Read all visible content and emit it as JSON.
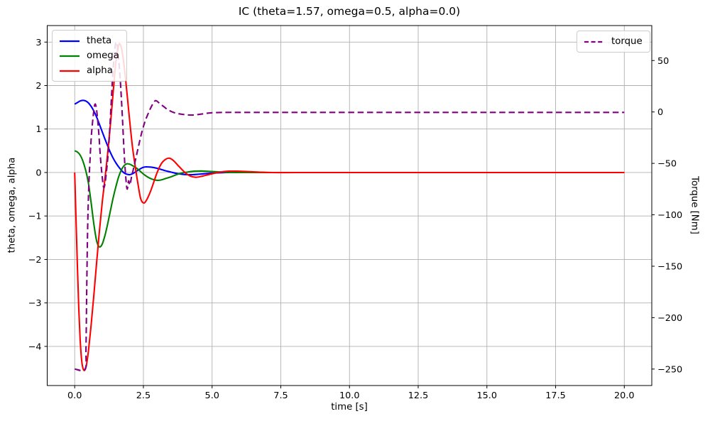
{
  "title": "IC (theta=1.57, omega=0.5, alpha=0.0)",
  "chart_data": {
    "type": "line",
    "title": "IC (theta=1.57, omega=0.5, alpha=0.0)",
    "xlabel": "time [s]",
    "ylabel_left": "theta, omega, alpha",
    "ylabel_right": "Torque [Nm]",
    "grid": true,
    "grid_color": "#b0b0b0",
    "xlim": [
      -1,
      21
    ],
    "ylim_left": [
      -4.9,
      3.38
    ],
    "ylim_right": [
      -266,
      84
    ],
    "x_tick_values": [
      0,
      2.5,
      5,
      7.5,
      10,
      12.5,
      15,
      17.5,
      20
    ],
    "x_tick_labels": [
      "0.0",
      "2.5",
      "5.0",
      "7.5",
      "10.0",
      "12.5",
      "15.0",
      "17.5",
      "20.0"
    ],
    "y_left_tick_values": [
      3,
      2,
      1,
      0,
      -1,
      -2,
      -3,
      -4
    ],
    "y_left_tick_labels": [
      "3",
      "2",
      "1",
      "0",
      "−1",
      "−2",
      "−3",
      "−4"
    ],
    "y_right_tick_values": [
      50,
      0,
      -50,
      -100,
      -150,
      -200,
      -250
    ],
    "y_right_tick_labels": [
      "50",
      "0",
      "−50",
      "−100",
      "−150",
      "−200",
      "−250"
    ],
    "legend_left_position": "upper left",
    "legend_right_position": "upper right",
    "series": [
      {
        "name": "theta",
        "axis": "left",
        "color": "#0000ff",
        "dash": "solid",
        "points": [
          [
            0,
            1.57
          ],
          [
            0.1,
            1.61
          ],
          [
            0.2,
            1.645
          ],
          [
            0.3,
            1.66
          ],
          [
            0.4,
            1.645
          ],
          [
            0.5,
            1.6
          ],
          [
            0.6,
            1.52
          ],
          [
            0.7,
            1.41
          ],
          [
            0.8,
            1.27
          ],
          [
            0.9,
            1.11
          ],
          [
            1,
            0.94
          ],
          [
            1.1,
            0.77
          ],
          [
            1.2,
            0.61
          ],
          [
            1.3,
            0.46
          ],
          [
            1.4,
            0.33
          ],
          [
            1.5,
            0.22
          ],
          [
            1.6,
            0.13
          ],
          [
            1.7,
            0.05
          ],
          [
            1.8,
            -0.01
          ],
          [
            1.9,
            -0.04
          ],
          [
            2,
            -0.05
          ],
          [
            2.1,
            -0.03
          ],
          [
            2.2,
            0.01
          ],
          [
            2.3,
            0.05
          ],
          [
            2.4,
            0.09
          ],
          [
            2.5,
            0.12
          ],
          [
            2.6,
            0.13
          ],
          [
            2.75,
            0.125
          ],
          [
            2.9,
            0.11
          ],
          [
            3.1,
            0.08
          ],
          [
            3.3,
            0.04
          ],
          [
            3.5,
            0.01
          ],
          [
            3.7,
            -0.02
          ],
          [
            3.9,
            -0.04
          ],
          [
            4.1,
            -0.05
          ],
          [
            4.3,
            -0.05
          ],
          [
            4.5,
            -0.04
          ],
          [
            4.8,
            -0.025
          ],
          [
            5.1,
            -0.01
          ],
          [
            5.5,
            0
          ],
          [
            6,
            0.01
          ],
          [
            6.5,
            0.005
          ],
          [
            7,
            0
          ],
          [
            8,
            0
          ],
          [
            9,
            0
          ],
          [
            10,
            0
          ],
          [
            11,
            0
          ],
          [
            12,
            0
          ],
          [
            13,
            0
          ],
          [
            14,
            0
          ],
          [
            15,
            0
          ],
          [
            16,
            0
          ],
          [
            17,
            0
          ],
          [
            18,
            0
          ],
          [
            19,
            0
          ],
          [
            20,
            0
          ]
        ]
      },
      {
        "name": "omega",
        "axis": "left",
        "color": "#008000",
        "dash": "solid",
        "points": [
          [
            0,
            0.5
          ],
          [
            0.1,
            0.47
          ],
          [
            0.2,
            0.4
          ],
          [
            0.3,
            0.26
          ],
          [
            0.4,
            0.05
          ],
          [
            0.5,
            -0.25
          ],
          [
            0.6,
            -0.7
          ],
          [
            0.7,
            -1.2
          ],
          [
            0.8,
            -1.58
          ],
          [
            0.9,
            -1.71
          ],
          [
            1,
            -1.65
          ],
          [
            1.1,
            -1.45
          ],
          [
            1.2,
            -1.18
          ],
          [
            1.3,
            -0.88
          ],
          [
            1.4,
            -0.58
          ],
          [
            1.5,
            -0.32
          ],
          [
            1.6,
            -0.1
          ],
          [
            1.7,
            0.06
          ],
          [
            1.8,
            0.16
          ],
          [
            1.9,
            0.2
          ],
          [
            2,
            0.19
          ],
          [
            2.1,
            0.16
          ],
          [
            2.25,
            0.1
          ],
          [
            2.4,
            0.02
          ],
          [
            2.55,
            -0.06
          ],
          [
            2.7,
            -0.12
          ],
          [
            2.85,
            -0.16
          ],
          [
            3,
            -0.18
          ],
          [
            3.15,
            -0.17
          ],
          [
            3.3,
            -0.14
          ],
          [
            3.5,
            -0.1
          ],
          [
            3.7,
            -0.05
          ],
          [
            3.9,
            -0.01
          ],
          [
            4.1,
            0.01
          ],
          [
            4.35,
            0.03
          ],
          [
            4.6,
            0.035
          ],
          [
            4.9,
            0.025
          ],
          [
            5.2,
            0.015
          ],
          [
            5.6,
            0.005
          ],
          [
            6,
            0
          ],
          [
            7,
            0
          ],
          [
            8,
            0
          ],
          [
            9,
            0
          ],
          [
            10,
            0
          ],
          [
            11,
            0
          ],
          [
            12,
            0
          ],
          [
            13,
            0
          ],
          [
            14,
            0
          ],
          [
            15,
            0
          ],
          [
            16,
            0
          ],
          [
            17,
            0
          ],
          [
            18,
            0
          ],
          [
            19,
            0
          ],
          [
            20,
            0
          ]
        ]
      },
      {
        "name": "alpha",
        "axis": "left",
        "color": "#ff0000",
        "dash": "solid",
        "points": [
          [
            0,
            0
          ],
          [
            0.05,
            -1.1
          ],
          [
            0.1,
            -2.2
          ],
          [
            0.15,
            -3.15
          ],
          [
            0.2,
            -3.85
          ],
          [
            0.25,
            -4.3
          ],
          [
            0.3,
            -4.5
          ],
          [
            0.36,
            -4.55
          ],
          [
            0.42,
            -4.45
          ],
          [
            0.5,
            -4.1
          ],
          [
            0.6,
            -3.5
          ],
          [
            0.7,
            -2.8
          ],
          [
            0.8,
            -2.05
          ],
          [
            0.9,
            -1.35
          ],
          [
            1,
            -0.7
          ],
          [
            1.1,
            -0.15
          ],
          [
            1.2,
            0.45
          ],
          [
            1.3,
            1.1
          ],
          [
            1.4,
            1.85
          ],
          [
            1.5,
            2.55
          ],
          [
            1.6,
            2.92
          ],
          [
            1.65,
            2.95
          ],
          [
            1.72,
            2.8
          ],
          [
            1.8,
            2.45
          ],
          [
            1.9,
            1.85
          ],
          [
            2,
            1.2
          ],
          [
            2.1,
            0.6
          ],
          [
            2.2,
            0.15
          ],
          [
            2.3,
            -0.25
          ],
          [
            2.4,
            -0.6
          ],
          [
            2.5,
            -0.7
          ],
          [
            2.6,
            -0.65
          ],
          [
            2.75,
            -0.45
          ],
          [
            2.9,
            -0.18
          ],
          [
            3,
            0
          ],
          [
            3.15,
            0.2
          ],
          [
            3.3,
            0.3
          ],
          [
            3.45,
            0.33
          ],
          [
            3.6,
            0.27
          ],
          [
            3.75,
            0.17
          ],
          [
            3.9,
            0.07
          ],
          [
            4.05,
            -0.02
          ],
          [
            4.2,
            -0.08
          ],
          [
            4.4,
            -0.11
          ],
          [
            4.6,
            -0.09
          ],
          [
            4.8,
            -0.06
          ],
          [
            5,
            -0.03
          ],
          [
            5.3,
            0.01
          ],
          [
            5.6,
            0.03
          ],
          [
            5.9,
            0.03
          ],
          [
            6.3,
            0.02
          ],
          [
            6.7,
            0.01
          ],
          [
            7.2,
            0
          ],
          [
            8,
            0
          ],
          [
            9,
            0
          ],
          [
            10,
            0
          ],
          [
            11,
            0
          ],
          [
            12,
            0
          ],
          [
            13,
            0
          ],
          [
            14,
            0
          ],
          [
            15,
            0
          ],
          [
            16,
            0
          ],
          [
            17,
            0
          ],
          [
            18,
            0
          ],
          [
            19,
            0
          ],
          [
            20,
            0
          ]
        ]
      },
      {
        "name": "torque",
        "axis": "right",
        "color": "#800080",
        "dash": "dashed",
        "points": [
          [
            0,
            -250
          ],
          [
            0.38,
            -250
          ],
          [
            0.41,
            -230
          ],
          [
            0.44,
            -170
          ],
          [
            0.47,
            -115
          ],
          [
            0.51,
            -75
          ],
          [
            0.56,
            -45
          ],
          [
            0.61,
            -22
          ],
          [
            0.67,
            -5
          ],
          [
            0.73,
            7
          ],
          [
            0.78,
            5
          ],
          [
            0.83,
            -6
          ],
          [
            0.88,
            -22
          ],
          [
            0.93,
            -42
          ],
          [
            0.99,
            -60
          ],
          [
            1.05,
            -73
          ],
          [
            1.1,
            -70
          ],
          [
            1.16,
            -57
          ],
          [
            1.22,
            -40
          ],
          [
            1.28,
            -15
          ],
          [
            1.34,
            15
          ],
          [
            1.4,
            42
          ],
          [
            1.46,
            61
          ],
          [
            1.51,
            68
          ],
          [
            1.56,
            62
          ],
          [
            1.62,
            45
          ],
          [
            1.68,
            22
          ],
          [
            1.74,
            -8
          ],
          [
            1.8,
            -40
          ],
          [
            1.86,
            -64
          ],
          [
            1.91,
            -75
          ],
          [
            1.96,
            -67
          ],
          [
            2.01,
            -71
          ],
          [
            2.07,
            -63
          ],
          [
            2.15,
            -54
          ],
          [
            2.25,
            -42
          ],
          [
            2.35,
            -30
          ],
          [
            2.45,
            -19
          ],
          [
            2.55,
            -10
          ],
          [
            2.65,
            -3
          ],
          [
            2.75,
            3
          ],
          [
            2.85,
            8
          ],
          [
            2.95,
            11
          ],
          [
            3.1,
            8
          ],
          [
            3.25,
            5
          ],
          [
            3.4,
            2
          ],
          [
            3.6,
            -0.5
          ],
          [
            3.8,
            -1.8
          ],
          [
            4,
            -2.6
          ],
          [
            4.2,
            -3
          ],
          [
            4.4,
            -2.8
          ],
          [
            4.6,
            -2.1
          ],
          [
            4.8,
            -1.3
          ],
          [
            5,
            -0.8
          ],
          [
            5.3,
            -0.5
          ],
          [
            5.6,
            -0.4
          ],
          [
            6,
            -0.4
          ],
          [
            7,
            -0.4
          ],
          [
            8,
            -0.4
          ],
          [
            9,
            -0.4
          ],
          [
            10,
            -0.4
          ],
          [
            11,
            -0.4
          ],
          [
            12,
            -0.4
          ],
          [
            13,
            -0.4
          ],
          [
            14,
            -0.4
          ],
          [
            15,
            -0.4
          ],
          [
            16,
            -0.4
          ],
          [
            17,
            -0.4
          ],
          [
            18,
            -0.4
          ],
          [
            19,
            -0.4
          ],
          [
            20,
            -0.4
          ]
        ]
      }
    ]
  }
}
